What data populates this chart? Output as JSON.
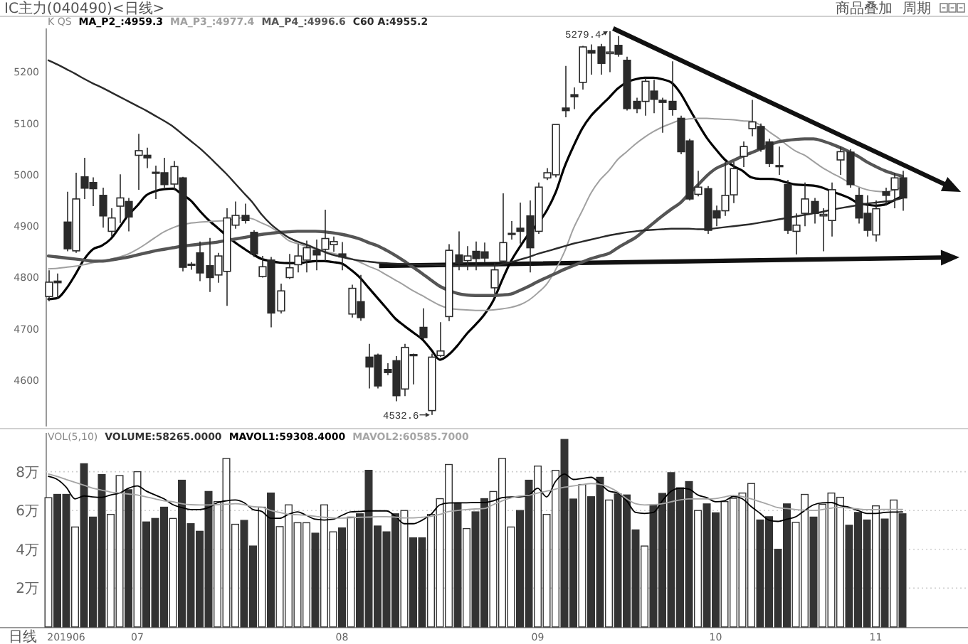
{
  "chart_data": [
    {
      "type": "candlestick",
      "title": "IC主力(040490)<日线>",
      "legend_title": "K QS",
      "legend": "top left",
      "tick_labels": "y",
      "color": "#2a2a2a",
      "categories": [
        null,
        null,
        null,
        null,
        null,
        null,
        null,
        null,
        null,
        null,
        null,
        null,
        null,
        null,
        null,
        null,
        null,
        null,
        null,
        null,
        null,
        null,
        null,
        null,
        null,
        null,
        null,
        null,
        null,
        null,
        null,
        null,
        null,
        null,
        null,
        null,
        null,
        null,
        null,
        null,
        null,
        null,
        null,
        null,
        null,
        null,
        null,
        null,
        null,
        null,
        null,
        null,
        null,
        null,
        null,
        null,
        null,
        null,
        null,
        null,
        null,
        null,
        null,
        null,
        null,
        null,
        null,
        null,
        null,
        null,
        null,
        null,
        null,
        null,
        null,
        null,
        null,
        null,
        null,
        null,
        null,
        null,
        null,
        null,
        null,
        null,
        null,
        null,
        null,
        null,
        null,
        null,
        null,
        null,
        null,
        null,
        null
      ],
      "ohlc": [
        [
          4763,
          4814,
          4754,
          4791
        ],
        [
          4793,
          4808,
          4758,
          4790
        ],
        [
          4908,
          4967,
          4851,
          4856
        ],
        [
          4852,
          5004,
          4848,
          4953
        ],
        [
          4996,
          5033,
          4953,
          4974
        ],
        [
          4985,
          4995,
          4939,
          4973
        ],
        [
          4960,
          4975,
          4897,
          4920
        ],
        [
          4890,
          4935,
          4880,
          4916
        ],
        [
          4939,
          5001,
          4906,
          4955
        ],
        [
          4948,
          4955,
          4890,
          4918
        ],
        [
          5038,
          5080,
          4971,
          5047
        ],
        [
          5038,
          5053,
          5013,
          5033
        ],
        [
          5005,
          5018,
          4953,
          5003
        ],
        [
          5004,
          5033,
          4975,
          4981
        ],
        [
          4982,
          5027,
          4970,
          5016
        ],
        [
          4994,
          4996,
          4812,
          4820
        ],
        [
          4826,
          4830,
          4815,
          4824
        ],
        [
          4848,
          4870,
          4793,
          4809
        ],
        [
          4823,
          4877,
          4772,
          4800
        ],
        [
          4805,
          4848,
          4790,
          4842
        ],
        [
          4812,
          4935,
          4745,
          4916
        ],
        [
          4902,
          4948,
          4895,
          4921
        ],
        [
          4921,
          4944,
          4905,
          4911
        ],
        [
          4888,
          4892,
          4840,
          4846
        ],
        [
          4802,
          4842,
          4800,
          4821
        ],
        [
          4834,
          4840,
          4703,
          4731
        ],
        [
          4735,
          4788,
          4730,
          4774
        ],
        [
          4800,
          4846,
          4797,
          4819
        ],
        [
          4825,
          4865,
          4810,
          4842
        ],
        [
          4834,
          4872,
          4810,
          4858
        ],
        [
          4853,
          4874,
          4814,
          4844
        ],
        [
          4855,
          4932,
          4832,
          4876
        ],
        [
          4864,
          4880,
          4850,
          4870
        ],
        [
          4846,
          4869,
          4814,
          4840
        ],
        [
          4729,
          4786,
          4722,
          4779
        ],
        [
          4753,
          4805,
          4716,
          4722
        ],
        [
          4645,
          4671,
          4584,
          4626
        ],
        [
          4649,
          4652,
          4584,
          4589
        ],
        [
          4621,
          4633,
          4610,
          4615
        ],
        [
          4638,
          4647,
          4559,
          4570
        ],
        [
          4583,
          4671,
          4569,
          4664
        ],
        [
          4650,
          4652,
          4592,
          4648
        ],
        [
          4703,
          4740,
          4678,
          4683
        ],
        [
          4541,
          4652,
          4532.6,
          4645
        ],
        [
          4648,
          4713,
          4645,
          4657
        ],
        [
          4724,
          4865,
          4715,
          4853
        ],
        [
          4844,
          4890,
          4814,
          4828
        ],
        [
          4833,
          4861,
          4814,
          4842
        ],
        [
          4851,
          4870,
          4814,
          4837
        ],
        [
          4850,
          4868,
          4830,
          4838
        ],
        [
          4780,
          4828,
          4768,
          4815
        ],
        [
          4832,
          4964,
          4825,
          4868
        ],
        [
          4884,
          4910,
          4874,
          4886
        ],
        [
          4896,
          4946,
          4866,
          4890
        ],
        [
          4920,
          4950,
          4810,
          4858
        ],
        [
          4890,
          4985,
          4885,
          4976
        ],
        [
          4994,
          5013,
          4990,
          5004
        ],
        [
          5000,
          5098,
          4995,
          5098
        ],
        [
          5130,
          5212,
          5112,
          5125
        ],
        [
          5156,
          5170,
          5128,
          5152
        ],
        [
          5180,
          5251,
          5166,
          5249
        ],
        [
          5242,
          5254,
          5195,
          5237
        ],
        [
          5249,
          5255,
          5195,
          5217
        ],
        [
          5236,
          5279.4,
          5200,
          5239
        ],
        [
          5252,
          5270,
          5230,
          5235
        ],
        [
          5223,
          5230,
          5125,
          5129
        ],
        [
          5143,
          5150,
          5120,
          5129
        ],
        [
          5143,
          5189,
          5115,
          5182
        ],
        [
          5163,
          5185,
          5120,
          5147
        ],
        [
          5145,
          5150,
          5082,
          5141
        ],
        [
          5143,
          5221,
          5115,
          5127
        ],
        [
          5110,
          5115,
          5040,
          5045
        ],
        [
          5066,
          5070,
          4950,
          4953
        ],
        [
          4962,
          5008,
          4958,
          4976
        ],
        [
          4973,
          4978,
          4885,
          4892
        ],
        [
          4930,
          4940,
          4900,
          4916
        ],
        [
          4930,
          5025,
          4920,
          4960
        ],
        [
          4961,
          5025,
          4945,
          5012
        ],
        [
          5036,
          5065,
          5015,
          5055
        ],
        [
          5090,
          5146,
          5075,
          5103
        ],
        [
          5094,
          5100,
          5045,
          5050
        ],
        [
          5064,
          5070,
          5015,
          5022
        ],
        [
          5018,
          5055,
          5000,
          5016
        ],
        [
          4981,
          4990,
          4885,
          4892
        ],
        [
          4890,
          4925,
          4845,
          4902
        ],
        [
          4925,
          4985,
          4900,
          4953
        ],
        [
          4948,
          4955,
          4905,
          4925
        ],
        [
          4920,
          4935,
          4851,
          4923
        ],
        [
          4911,
          4985,
          4880,
          4971
        ],
        [
          5029,
          5055,
          5000,
          5045
        ],
        [
          5044,
          5050,
          4975,
          4981
        ],
        [
          4960,
          4975,
          4905,
          4916
        ],
        [
          4925,
          4960,
          4880,
          4892
        ],
        [
          4883,
          4950,
          4870,
          4934
        ],
        [
          4967,
          4975,
          4940,
          4960
        ],
        [
          4971,
          5004,
          4935,
          4994
        ],
        [
          4994,
          5008,
          4930,
          4955
        ]
      ],
      "series": [
        {
          "name": "MA_P2_:4959.3",
          "type": "line",
          "color": "#000000",
          "values": [
            4758,
            4760,
            4778,
            4805,
            4835,
            4855,
            4862,
            4875,
            4898,
            4922,
            4940,
            4960,
            4968,
            4972,
            4973,
            4962,
            4950,
            4930,
            4912,
            4897,
            4882,
            4868,
            4856,
            4845,
            4836,
            4832,
            4829,
            4828,
            4828,
            4830,
            4832,
            4832,
            4830,
            4827,
            4815,
            4800,
            4780,
            4760,
            4740,
            4720,
            4706,
            4693,
            4680,
            4660,
            4640,
            4650,
            4668,
            4690,
            4708,
            4728,
            4755,
            4795,
            4832,
            4860,
            4885,
            4905,
            4930,
            4965,
            5015,
            5055,
            5090,
            5115,
            5133,
            5150,
            5168,
            5180,
            5186,
            5189,
            5189,
            5186,
            5180,
            5160,
            5130,
            5100,
            5072,
            5050,
            5030,
            5017,
            5008,
            4995,
            4992,
            4992,
            4990,
            4985,
            4981,
            4980,
            4979,
            4975,
            4968,
            4962,
            4955,
            4945,
            4942,
            4940,
            4942,
            4950,
            4959
          ]
        },
        {
          "name": "MA_P3_:4977.4",
          "type": "line",
          "color": "#a0a0a0",
          "values": [
            4817,
            4818,
            4820,
            4822,
            4825,
            4829,
            4832,
            4836,
            4840,
            4846,
            4855,
            4866,
            4878,
            4889,
            4897,
            4903,
            4906,
            4908,
            4909,
            4910,
            4911,
            4914,
            4917,
            4914,
            4906,
            4898,
            4886,
            4872,
            4866,
            4861,
            4856,
            4851,
            4847,
            4843,
            4837,
            4830,
            4822,
            4815,
            4805,
            4795,
            4785,
            4774,
            4765,
            4755,
            4746,
            4740,
            4738,
            4737,
            4736,
            4736,
            4737,
            4739,
            4742,
            4747,
            4756,
            4770,
            4787,
            4815,
            4850,
            4895,
            4930,
            4965,
            4990,
            5008,
            5030,
            5045,
            5060,
            5073,
            5084,
            5093,
            5100,
            5106,
            5109,
            5110,
            5110,
            5109,
            5108,
            5107,
            5105,
            5104,
            5097,
            5084,
            5072,
            5058,
            5046,
            5038,
            5026,
            5014,
            5004,
            4995,
            4985,
            4977,
            4971,
            4968,
            4967,
            4970,
            4977
          ]
        },
        {
          "name": "MA_P4_:4996.6",
          "type": "line",
          "color": "#555555",
          "values": [
            4842,
            4840,
            4838,
            4836,
            4834,
            4832,
            4832,
            4834,
            4837,
            4840,
            4844,
            4848,
            4852,
            4855,
            4858,
            4861,
            4863,
            4865,
            4867,
            4869,
            4872,
            4875,
            4878,
            4881,
            4884,
            4886,
            4888,
            4889,
            4890,
            4890,
            4890,
            4889,
            4887,
            4884,
            4880,
            4875,
            4868,
            4862,
            4853,
            4843,
            4832,
            4820,
            4808,
            4795,
            4783,
            4775,
            4769,
            4766,
            4765,
            4765,
            4765,
            4766,
            4768,
            4775,
            4783,
            4792,
            4800,
            4808,
            4816,
            4823,
            4830,
            4837,
            4842,
            4847,
            4858,
            4868,
            4878,
            4892,
            4906,
            4920,
            4933,
            4945,
            4963,
            4980,
            4998,
            5012,
            5020,
            5028,
            5036,
            5043,
            5050,
            5058,
            5064,
            5067,
            5069,
            5070,
            5070,
            5066,
            5060,
            5053,
            5045,
            5036,
            5025,
            5016,
            5008,
            5002,
            4997
          ]
        },
        {
          "name": "C60 A:4955.2",
          "type": "line",
          "color": "#2a2a2a",
          "values": [
            5223,
            5215,
            5206,
            5197,
            5187,
            5178,
            5170,
            5161,
            5152,
            5143,
            5134,
            5125,
            5115,
            5105,
            5094,
            5080,
            5066,
            5052,
            5036,
            5019,
            5002,
            4983,
            4964,
            4945,
            4922,
            4904,
            4890,
            4878,
            4870,
            4864,
            4857,
            4850,
            4844,
            4840,
            4836,
            4833,
            4831,
            4829,
            4828,
            4827,
            4826,
            4826,
            4825,
            4825,
            4824,
            4824,
            4823,
            4823,
            4823,
            4823,
            4823,
            4826,
            4830,
            4835,
            4840,
            4846,
            4851,
            4856,
            4861,
            4866,
            4870,
            4874,
            4878,
            4882,
            4885,
            4888,
            4890,
            4892,
            4893,
            4894,
            4895,
            4895,
            4895,
            4894,
            4894,
            4896,
            4898,
            4900,
            4902,
            4904,
            4907,
            4910,
            4913,
            4916,
            4919,
            4922,
            4925,
            4928,
            4932,
            4935,
            4938,
            4941,
            4944,
            4946,
            4948,
            4950,
            4955
          ]
        }
      ],
      "ylim": [
        4510,
        5285
      ],
      "yticks": [
        4600,
        4700,
        4800,
        4900,
        5000,
        5100,
        5200
      ],
      "annotations": [
        "5279.4",
        "4532.6",
        "商品叠加",
        "周期"
      ]
    },
    {
      "type": "bar",
      "legend_title": "VOL(5,10)",
      "legend": "top left",
      "xlabel": "日线",
      "grid": "y",
      "categories": [
        null,
        null,
        "201906",
        null,
        null,
        null,
        null,
        null,
        null,
        null,
        "07",
        null,
        null,
        null,
        null,
        null,
        null,
        null,
        null,
        null,
        null,
        null,
        null,
        null,
        null,
        null,
        null,
        null,
        null,
        null,
        null,
        null,
        null,
        "08",
        null,
        null,
        null,
        null,
        null,
        null,
        null,
        null,
        null,
        null,
        null,
        null,
        null,
        null,
        null,
        null,
        null,
        null,
        null,
        null,
        null,
        "09",
        null,
        null,
        null,
        null,
        null,
        null,
        null,
        null,
        null,
        null,
        null,
        null,
        null,
        null,
        null,
        null,
        null,
        null,
        null,
        "10",
        null,
        null,
        null,
        null,
        null,
        null,
        null,
        null,
        null,
        null,
        null,
        null,
        null,
        null,
        null,
        null,
        null,
        "11",
        null,
        null,
        null
      ],
      "series": [
        {
          "name": "VOLUME:58265.0000",
          "type": "bar",
          "color": "#333333",
          "colors": [
            "#ffffff",
            "#333333",
            "#333333",
            "#ffffff",
            "#333333",
            "#333333",
            "#333333",
            "#ffffff",
            "#ffffff",
            "#333333",
            "#ffffff",
            "#333333",
            "#333333",
            "#333333",
            "#ffffff",
            "#333333",
            "#333333",
            "#333333",
            "#333333",
            "#ffffff",
            "#ffffff",
            "#ffffff",
            "#333333",
            "#333333",
            "#ffffff",
            "#333333",
            "#ffffff",
            "#ffffff",
            "#ffffff",
            "#ffffff",
            "#333333",
            "#ffffff",
            "#ffffff",
            "#333333",
            "#ffffff",
            "#333333",
            "#333333",
            "#333333",
            "#333333",
            "#333333",
            "#ffffff",
            "#333333",
            "#333333",
            "#ffffff",
            "#ffffff",
            "#ffffff",
            "#333333",
            "#ffffff",
            "#333333",
            "#333333",
            "#ffffff",
            "#ffffff",
            "#ffffff",
            "#333333",
            "#333333",
            "#ffffff",
            "#ffffff",
            "#ffffff",
            "#333333",
            "#333333",
            "#ffffff",
            "#333333",
            "#333333",
            "#ffffff",
            "#333333",
            "#333333",
            "#333333",
            "#ffffff",
            "#333333",
            "#333333",
            "#333333",
            "#333333",
            "#333333",
            "#ffffff",
            "#333333",
            "#333333",
            "#ffffff",
            "#ffffff",
            "#ffffff",
            "#ffffff",
            "#333333",
            "#333333",
            "#333333",
            "#333333",
            "#ffffff",
            "#ffffff",
            "#333333",
            "#ffffff",
            "#ffffff",
            "#ffffff",
            "#333333",
            "#333333",
            "#333333",
            "#ffffff",
            "#333333",
            "#ffffff",
            "#333333"
          ],
          "values": [
            6.66,
            6.83,
            6.83,
            5.15,
            8.41,
            5.66,
            7.85,
            5.8,
            7.8,
            7.07,
            8,
            5.41,
            5.59,
            6.17,
            5.59,
            7.56,
            5.32,
            4.93,
            6.98,
            6.46,
            8.68,
            5.29,
            5.49,
            4.17,
            6.17,
            6.9,
            5.17,
            6.29,
            5.37,
            5.37,
            4.83,
            6.29,
            4.9,
            5.1,
            5.66,
            5.83,
            8.07,
            5.2,
            4.9,
            5.83,
            6,
            4.59,
            4.59,
            5.8,
            6.61,
            8.37,
            6.39,
            5.07,
            5.93,
            6.61,
            6.98,
            8.68,
            5.15,
            6,
            7.56,
            8.29,
            5.8,
            8.07,
            9.66,
            6.59,
            7.34,
            6.71,
            7.71,
            6.54,
            6.85,
            6.8,
            5,
            4.17,
            6.29,
            6.88,
            7.95,
            7.17,
            7.49,
            6,
            6.34,
            5.88,
            6.46,
            6.63,
            6.9,
            7.39,
            5.51,
            5.68,
            4,
            6.34,
            5.39,
            6.83,
            5.66,
            6.32,
            6.9,
            6.68,
            5.24,
            5.9,
            5.51,
            6.24,
            5.56,
            6.54,
            5.83
          ]
        },
        {
          "name": "MAVOL1:59308.4000",
          "type": "line",
          "color": "#000000",
          "values": [
            7.76,
            7.6,
            7.2,
            6.6,
            6.75,
            6.7,
            6.68,
            6.8,
            6.9,
            7.15,
            7.27,
            7,
            6.8,
            6.6,
            6.3,
            6.15,
            6.05,
            6.05,
            6.15,
            6.4,
            6.5,
            6.54,
            6.4,
            6.05,
            5.95,
            5.6,
            5.6,
            5.8,
            5.93,
            5.75,
            5.55,
            5.51,
            5.55,
            5.75,
            5.93,
            5.95,
            5.98,
            5.98,
            5.98,
            5.7,
            5.32,
            5.32,
            5.5,
            5.8,
            6.29,
            6.39,
            6.4,
            6.4,
            6.41,
            6.41,
            6.5,
            6.66,
            6.7,
            6.7,
            6.8,
            7.15,
            6.7,
            7.5,
            7.88,
            7.6,
            7.65,
            7.71,
            7.4,
            7,
            6.9,
            6.5,
            5.9,
            5.85,
            5.9,
            6.5,
            7,
            7.15,
            7.1,
            6.8,
            6.66,
            6.45,
            6.5,
            6.73,
            6.6,
            6.2,
            5.85,
            5.5,
            5.44,
            5.55,
            5.68,
            6,
            6.29,
            6.4,
            6.41,
            6.25,
            6.17,
            6,
            5.85,
            5.85,
            5.9,
            5.92,
            5.93
          ]
        },
        {
          "name": "MAVOL2:60585.7000",
          "type": "line",
          "color": "#a6a6a6",
          "values": [
            7.88,
            7.75,
            7.6,
            7.45,
            7.3,
            7.15,
            7.05,
            6.95,
            6.9,
            6.85,
            6.8,
            6.7,
            6.6,
            6.5,
            6.45,
            6.35,
            6.3,
            6.29,
            6.29,
            6.3,
            6.32,
            6.35,
            6.3,
            6.2,
            6.17,
            6,
            5.9,
            5.8,
            5.78,
            5.75,
            5.7,
            5.65,
            5.62,
            5.61,
            5.63,
            5.65,
            5.66,
            5.68,
            5.68,
            5.66,
            5.62,
            5.62,
            5.65,
            5.7,
            5.8,
            5.95,
            6,
            6.05,
            6.08,
            6.1,
            6.3,
            6.5,
            6.65,
            6.75,
            6.78,
            6.9,
            7,
            7.1,
            7.2,
            7.27,
            7.33,
            7.39,
            7.35,
            7.2,
            6.95,
            6.6,
            6.35,
            6.29,
            6.3,
            6.35,
            6.45,
            6.54,
            6.6,
            6.6,
            6.6,
            6.62,
            6.7,
            6.78,
            6.72,
            6.6,
            6.45,
            6.3,
            6.15,
            6.1,
            6.05,
            6.02,
            6,
            6.05,
            6.12,
            6.17,
            6.12,
            6.08,
            6.05,
            6.05,
            6.06,
            6.06,
            6.06
          ]
        }
      ],
      "ylim": [
        0,
        10
      ],
      "yticks": [
        {
          "value": 2,
          "label": "2万"
        },
        {
          "value": 4,
          "label": "4万"
        },
        {
          "value": 6,
          "label": "6万"
        },
        {
          "value": 8,
          "label": "8万"
        }
      ]
    }
  ]
}
